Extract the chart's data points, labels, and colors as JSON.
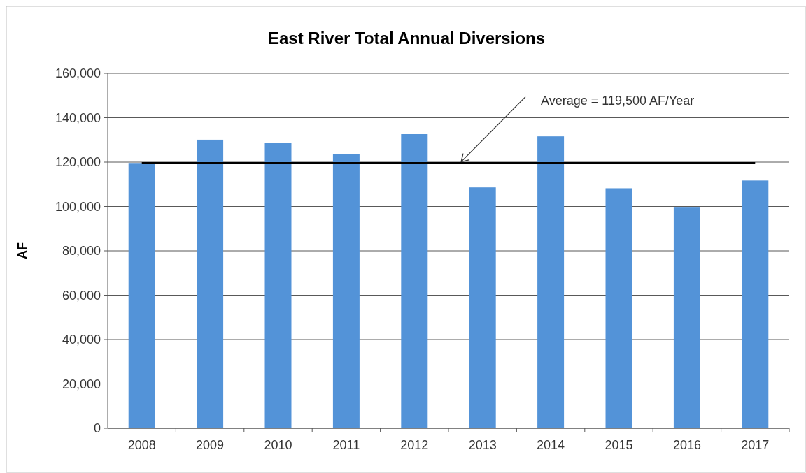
{
  "chart_data": {
    "type": "bar",
    "title": "East River Total Annual Diversions",
    "ylabel": "AF",
    "categories": [
      "2008",
      "2009",
      "2010",
      "2011",
      "2012",
      "2013",
      "2014",
      "2015",
      "2016",
      "2017"
    ],
    "values": [
      119300,
      130100,
      128600,
      123700,
      132600,
      108600,
      131600,
      108200,
      99800,
      111700
    ],
    "color": "#5393d8",
    "ylim": [
      0,
      160000
    ],
    "yticks": [
      {
        "value": 0,
        "label": "0"
      },
      {
        "value": 20000,
        "label": "20,000"
      },
      {
        "value": 40000,
        "label": "40,000"
      },
      {
        "value": 60000,
        "label": "60,000"
      },
      {
        "value": 80000,
        "label": "80,000"
      },
      {
        "value": 100000,
        "label": "100,000"
      },
      {
        "value": 120000,
        "label": "120,000"
      },
      {
        "value": 140000,
        "label": "140,000"
      },
      {
        "value": 160000,
        "label": "160,000"
      }
    ],
    "grid": "y",
    "ref_lines": [
      {
        "axis": "y",
        "value": 119500,
        "label": "Average = 119,500 AF/Year",
        "color": "#000000"
      }
    ]
  }
}
